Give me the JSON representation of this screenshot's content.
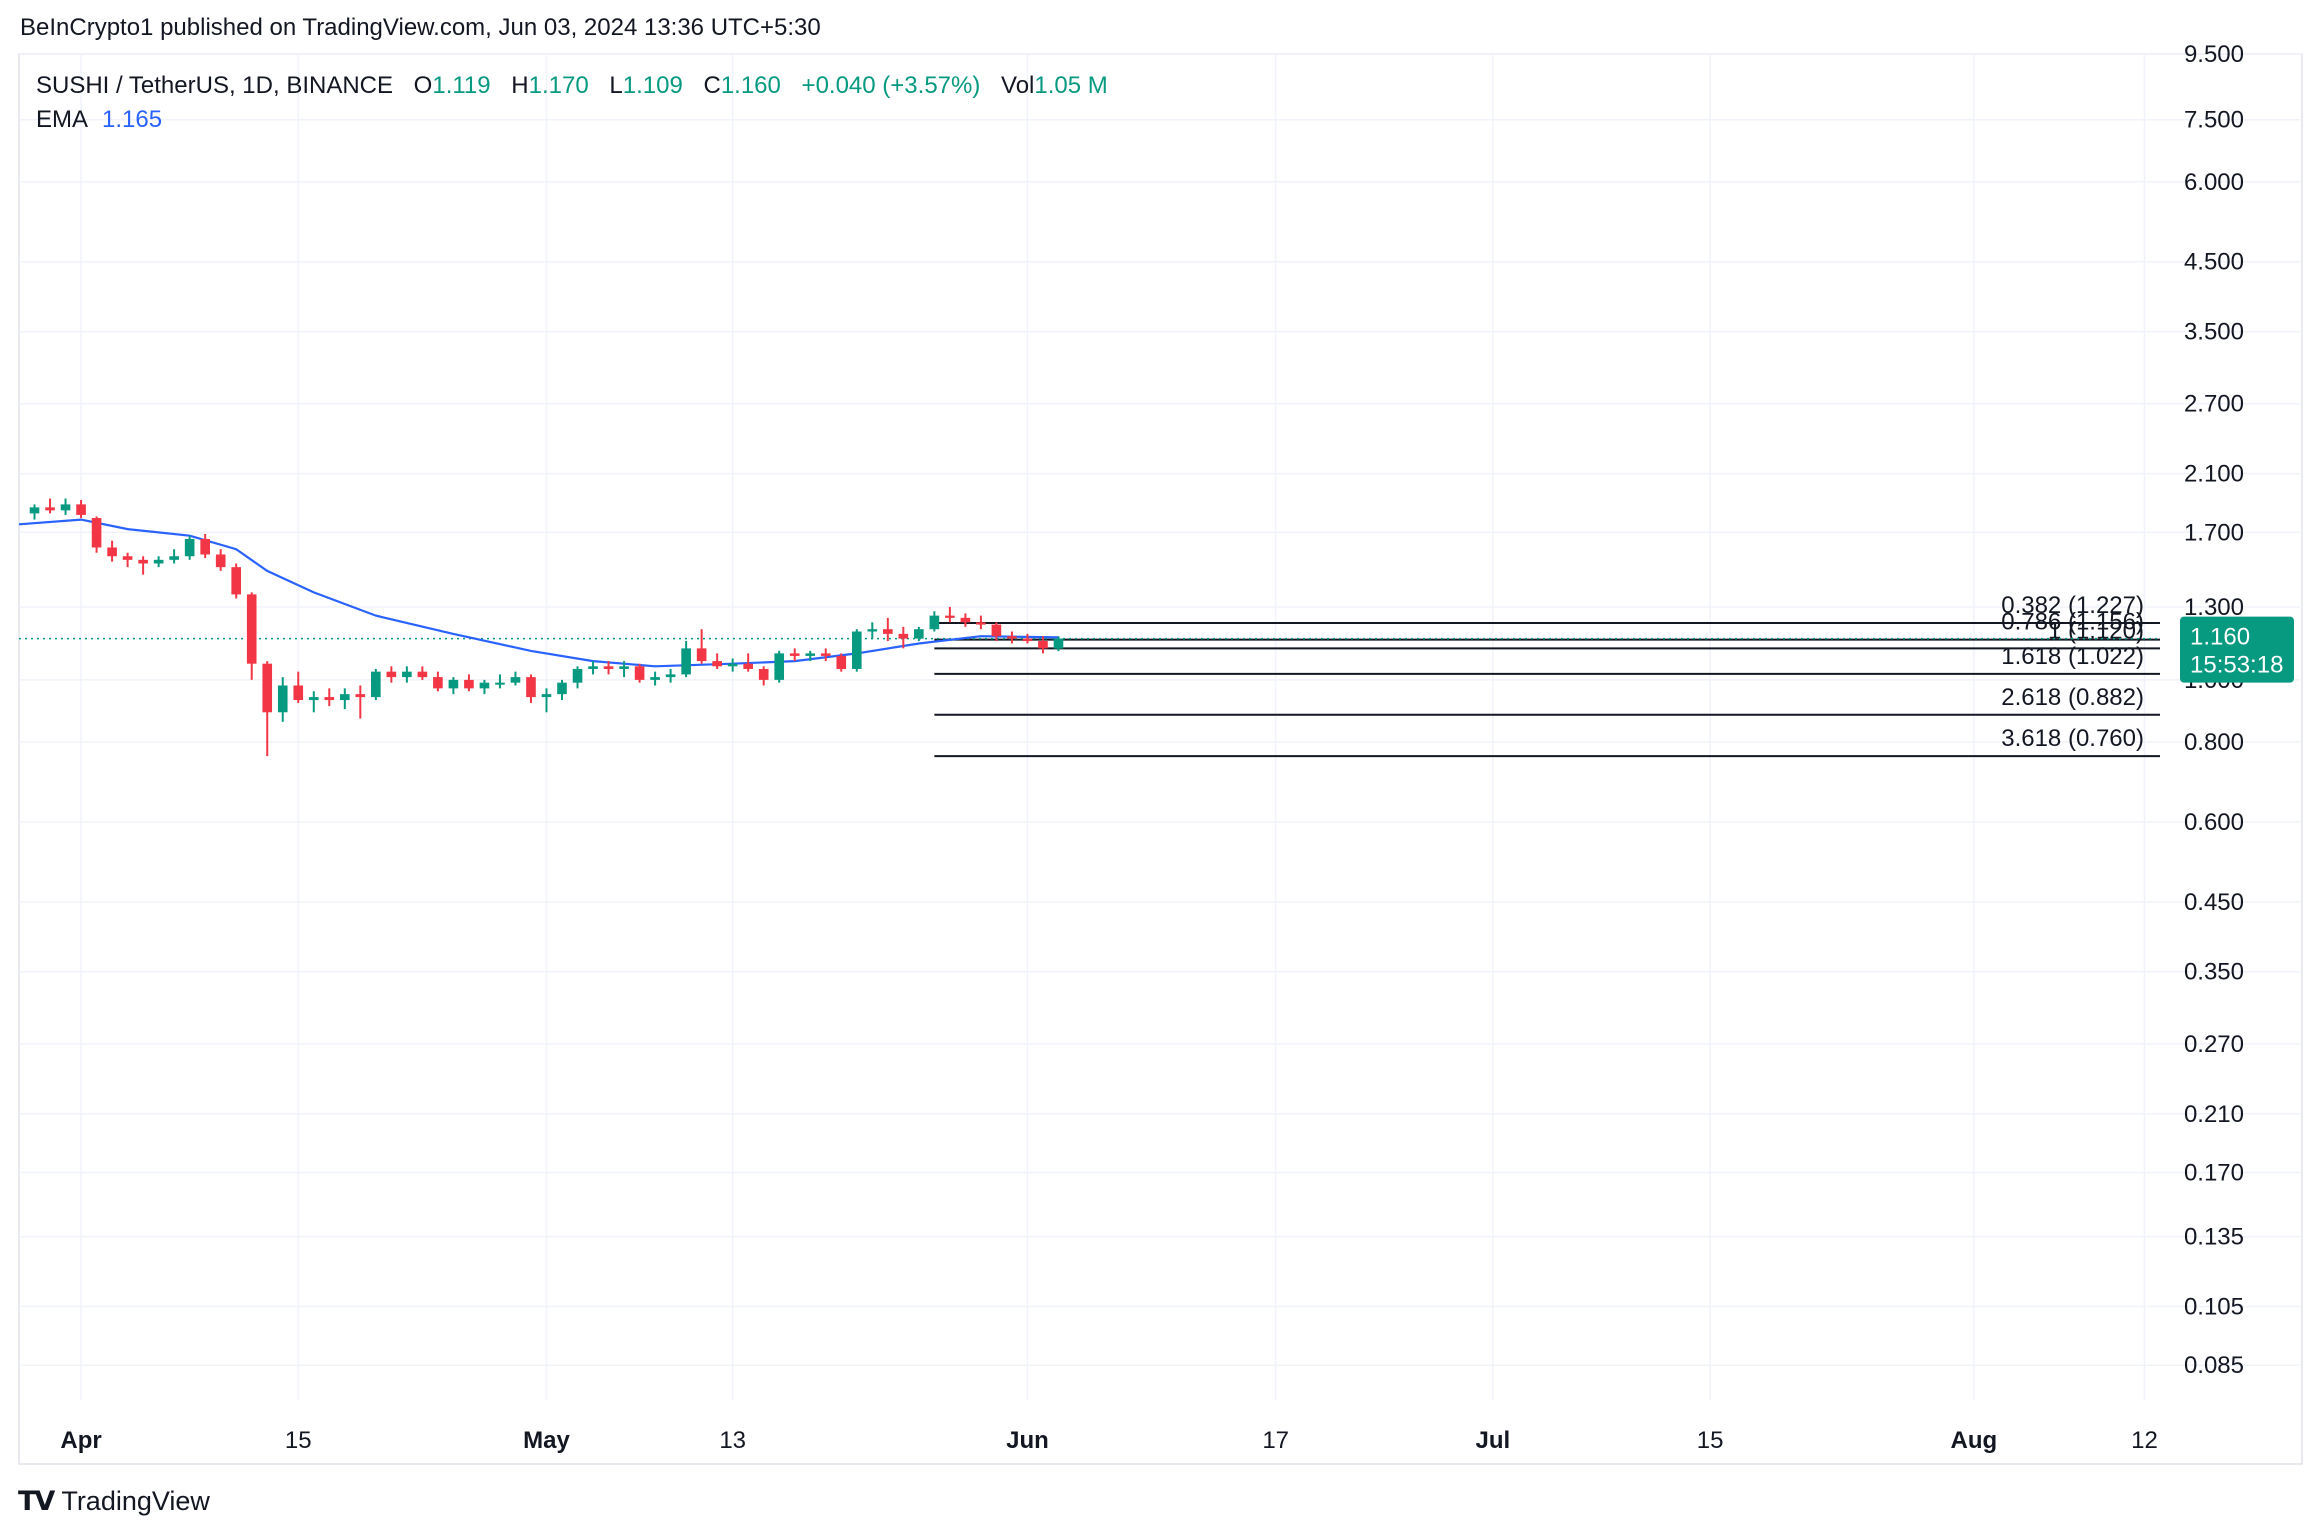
{
  "header": {
    "published_text": "BeInCrypto1 published on TradingView.com, Jun 03, 2024 13:36 UTC+5:30"
  },
  "legend": {
    "symbol": "SUSHI / TetherUS, 1D, BINANCE",
    "o_label": "O",
    "o_value": "1.119",
    "h_label": "H",
    "h_value": "1.170",
    "l_label": "L",
    "l_value": "1.109",
    "c_label": "C",
    "c_value": "1.160",
    "change": "+0.040 (+3.57%)",
    "vol_label": "Vol",
    "vol_value": "1.05 M",
    "ema_label": "EMA",
    "ema_value": "1.165"
  },
  "price_badge": {
    "price": "1.160",
    "countdown": "15:53:18",
    "color": "#089981"
  },
  "brand": {
    "name": "TradingView",
    "logo_icon": "tradingview-logo-icon"
  },
  "colors": {
    "up": "#089981",
    "down": "#f23645",
    "ema": "#2962ff",
    "grid": "#f0f3fa"
  },
  "chart_data": {
    "type": "candlestick",
    "scale": "log",
    "grid": true,
    "y_ticks": [
      "9.500",
      "7.500",
      "6.000",
      "4.500",
      "3.500",
      "2.700",
      "2.100",
      "1.700",
      "1.300",
      "1.000",
      "0.800",
      "0.600",
      "0.450",
      "0.350",
      "0.270",
      "0.210",
      "0.170",
      "0.135",
      "0.105",
      "0.085"
    ],
    "y_tick_values": [
      9.5,
      7.5,
      6.0,
      4.5,
      3.5,
      2.7,
      2.1,
      1.7,
      1.3,
      1.0,
      0.8,
      0.6,
      0.45,
      0.35,
      0.27,
      0.21,
      0.17,
      0.135,
      0.105,
      0.085
    ],
    "ylim": [
      0.075,
      9.5
    ],
    "x_ticks": [
      {
        "label": "Apr",
        "date": "2024-04-01",
        "bold": true
      },
      {
        "label": "15",
        "date": "2024-04-15",
        "bold": false
      },
      {
        "label": "May",
        "date": "2024-05-01",
        "bold": true
      },
      {
        "label": "13",
        "date": "2024-05-13",
        "bold": false
      },
      {
        "label": "Jun",
        "date": "2024-06-01",
        "bold": true
      },
      {
        "label": "17",
        "date": "2024-06-17",
        "bold": false
      },
      {
        "label": "Jul",
        "date": "2024-07-01",
        "bold": true
      },
      {
        "label": "15",
        "date": "2024-07-15",
        "bold": false
      },
      {
        "label": "Aug",
        "date": "2024-08-01",
        "bold": true
      },
      {
        "label": "12",
        "date": "2024-08-12",
        "bold": false
      }
    ],
    "xlim": [
      "2024-03-28",
      "2024-08-13"
    ],
    "candles": [
      {
        "date": "2024-03-29",
        "o": 1.82,
        "h": 1.88,
        "l": 1.78,
        "c": 1.86
      },
      {
        "date": "2024-03-30",
        "o": 1.86,
        "h": 1.92,
        "l": 1.82,
        "c": 1.84
      },
      {
        "date": "2024-03-31",
        "o": 1.84,
        "h": 1.92,
        "l": 1.81,
        "c": 1.88
      },
      {
        "date": "2024-04-01",
        "o": 1.88,
        "h": 1.91,
        "l": 1.79,
        "c": 1.81
      },
      {
        "date": "2024-04-02",
        "o": 1.79,
        "h": 1.8,
        "l": 1.58,
        "c": 1.61
      },
      {
        "date": "2024-04-03",
        "o": 1.61,
        "h": 1.65,
        "l": 1.53,
        "c": 1.56
      },
      {
        "date": "2024-04-04",
        "o": 1.56,
        "h": 1.58,
        "l": 1.5,
        "c": 1.54
      },
      {
        "date": "2024-04-05",
        "o": 1.54,
        "h": 1.56,
        "l": 1.46,
        "c": 1.52
      },
      {
        "date": "2024-04-06",
        "o": 1.52,
        "h": 1.56,
        "l": 1.5,
        "c": 1.54
      },
      {
        "date": "2024-04-07",
        "o": 1.54,
        "h": 1.6,
        "l": 1.52,
        "c": 1.56
      },
      {
        "date": "2024-04-08",
        "o": 1.56,
        "h": 1.68,
        "l": 1.54,
        "c": 1.66
      },
      {
        "date": "2024-04-09",
        "o": 1.66,
        "h": 1.69,
        "l": 1.55,
        "c": 1.57
      },
      {
        "date": "2024-04-10",
        "o": 1.57,
        "h": 1.6,
        "l": 1.48,
        "c": 1.5
      },
      {
        "date": "2024-04-11",
        "o": 1.5,
        "h": 1.52,
        "l": 1.34,
        "c": 1.36
      },
      {
        "date": "2024-04-12",
        "o": 1.36,
        "h": 1.37,
        "l": 1.0,
        "c": 1.06
      },
      {
        "date": "2024-04-13",
        "o": 1.06,
        "h": 1.07,
        "l": 0.76,
        "c": 0.89
      },
      {
        "date": "2024-04-14",
        "o": 0.89,
        "h": 1.01,
        "l": 0.86,
        "c": 0.98
      },
      {
        "date": "2024-04-15",
        "o": 0.98,
        "h": 1.03,
        "l": 0.92,
        "c": 0.93
      },
      {
        "date": "2024-04-16",
        "o": 0.93,
        "h": 0.96,
        "l": 0.89,
        "c": 0.94
      },
      {
        "date": "2024-04-17",
        "o": 0.94,
        "h": 0.97,
        "l": 0.91,
        "c": 0.93
      },
      {
        "date": "2024-04-18",
        "o": 0.93,
        "h": 0.97,
        "l": 0.9,
        "c": 0.95
      },
      {
        "date": "2024-04-19",
        "o": 0.95,
        "h": 0.98,
        "l": 0.87,
        "c": 0.94
      },
      {
        "date": "2024-04-20",
        "o": 0.94,
        "h": 1.04,
        "l": 0.93,
        "c": 1.03
      },
      {
        "date": "2024-04-21",
        "o": 1.03,
        "h": 1.05,
        "l": 0.99,
        "c": 1.01
      },
      {
        "date": "2024-04-22",
        "o": 1.01,
        "h": 1.05,
        "l": 0.99,
        "c": 1.03
      },
      {
        "date": "2024-04-23",
        "o": 1.03,
        "h": 1.05,
        "l": 1.0,
        "c": 1.01
      },
      {
        "date": "2024-04-24",
        "o": 1.01,
        "h": 1.03,
        "l": 0.96,
        "c": 0.97
      },
      {
        "date": "2024-04-25",
        "o": 0.97,
        "h": 1.01,
        "l": 0.95,
        "c": 1.0
      },
      {
        "date": "2024-04-26",
        "o": 1.0,
        "h": 1.02,
        "l": 0.96,
        "c": 0.97
      },
      {
        "date": "2024-04-27",
        "o": 0.97,
        "h": 1.0,
        "l": 0.95,
        "c": 0.99
      },
      {
        "date": "2024-04-28",
        "o": 0.99,
        "h": 1.02,
        "l": 0.97,
        "c": 0.99
      },
      {
        "date": "2024-04-29",
        "o": 0.99,
        "h": 1.03,
        "l": 0.98,
        "c": 1.01
      },
      {
        "date": "2024-04-30",
        "o": 1.01,
        "h": 1.02,
        "l": 0.92,
        "c": 0.94
      },
      {
        "date": "2024-05-01",
        "o": 0.94,
        "h": 0.97,
        "l": 0.89,
        "c": 0.95
      },
      {
        "date": "2024-05-02",
        "o": 0.95,
        "h": 1.0,
        "l": 0.93,
        "c": 0.99
      },
      {
        "date": "2024-05-03",
        "o": 0.99,
        "h": 1.05,
        "l": 0.97,
        "c": 1.04
      },
      {
        "date": "2024-05-04",
        "o": 1.04,
        "h": 1.07,
        "l": 1.02,
        "c": 1.05
      },
      {
        "date": "2024-05-05",
        "o": 1.05,
        "h": 1.07,
        "l": 1.02,
        "c": 1.04
      },
      {
        "date": "2024-05-06",
        "o": 1.04,
        "h": 1.07,
        "l": 1.01,
        "c": 1.05
      },
      {
        "date": "2024-05-07",
        "o": 1.05,
        "h": 1.06,
        "l": 0.99,
        "c": 1.0
      },
      {
        "date": "2024-05-08",
        "o": 1.0,
        "h": 1.03,
        "l": 0.98,
        "c": 1.01
      },
      {
        "date": "2024-05-09",
        "o": 1.01,
        "h": 1.04,
        "l": 0.99,
        "c": 1.02
      },
      {
        "date": "2024-05-10",
        "o": 1.02,
        "h": 1.15,
        "l": 1.01,
        "c": 1.12
      },
      {
        "date": "2024-05-11",
        "o": 1.12,
        "h": 1.2,
        "l": 1.06,
        "c": 1.07
      },
      {
        "date": "2024-05-12",
        "o": 1.07,
        "h": 1.1,
        "l": 1.04,
        "c": 1.05
      },
      {
        "date": "2024-05-13",
        "o": 1.05,
        "h": 1.08,
        "l": 1.03,
        "c": 1.06
      },
      {
        "date": "2024-05-14",
        "o": 1.06,
        "h": 1.1,
        "l": 1.03,
        "c": 1.04
      },
      {
        "date": "2024-05-15",
        "o": 1.04,
        "h": 1.05,
        "l": 0.98,
        "c": 1.0
      },
      {
        "date": "2024-05-16",
        "o": 1.0,
        "h": 1.11,
        "l": 0.99,
        "c": 1.1
      },
      {
        "date": "2024-05-17",
        "o": 1.1,
        "h": 1.12,
        "l": 1.07,
        "c": 1.09
      },
      {
        "date": "2024-05-18",
        "o": 1.09,
        "h": 1.11,
        "l": 1.07,
        "c": 1.1
      },
      {
        "date": "2024-05-19",
        "o": 1.1,
        "h": 1.12,
        "l": 1.07,
        "c": 1.09
      },
      {
        "date": "2024-05-20",
        "o": 1.09,
        "h": 1.1,
        "l": 1.03,
        "c": 1.04
      },
      {
        "date": "2024-05-21",
        "o": 1.04,
        "h": 1.2,
        "l": 1.03,
        "c": 1.19
      },
      {
        "date": "2024-05-22",
        "o": 1.19,
        "h": 1.23,
        "l": 1.16,
        "c": 1.2
      },
      {
        "date": "2024-05-23",
        "o": 1.2,
        "h": 1.25,
        "l": 1.15,
        "c": 1.18
      },
      {
        "date": "2024-05-24",
        "o": 1.18,
        "h": 1.21,
        "l": 1.12,
        "c": 1.16
      },
      {
        "date": "2024-05-25",
        "o": 1.16,
        "h": 1.21,
        "l": 1.15,
        "c": 1.2
      },
      {
        "date": "2024-05-26",
        "o": 1.2,
        "h": 1.28,
        "l": 1.19,
        "c": 1.26
      },
      {
        "date": "2024-05-27",
        "o": 1.26,
        "h": 1.3,
        "l": 1.23,
        "c": 1.25
      },
      {
        "date": "2024-05-28",
        "o": 1.25,
        "h": 1.27,
        "l": 1.21,
        "c": 1.23
      },
      {
        "date": "2024-05-29",
        "o": 1.23,
        "h": 1.26,
        "l": 1.2,
        "c": 1.22
      },
      {
        "date": "2024-05-30",
        "o": 1.22,
        "h": 1.23,
        "l": 1.15,
        "c": 1.17
      },
      {
        "date": "2024-05-31",
        "o": 1.17,
        "h": 1.19,
        "l": 1.14,
        "c": 1.16
      },
      {
        "date": "2024-06-01",
        "o": 1.16,
        "h": 1.18,
        "l": 1.14,
        "c": 1.15
      },
      {
        "date": "2024-06-02",
        "o": 1.15,
        "h": 1.17,
        "l": 1.1,
        "c": 1.12
      },
      {
        "date": "2024-06-03",
        "o": 1.119,
        "h": 1.17,
        "l": 1.109,
        "c": 1.16
      }
    ],
    "ema": {
      "name": "EMA",
      "points": [
        {
          "date": "2024-03-28",
          "value": 1.75
        },
        {
          "date": "2024-04-01",
          "value": 1.78
        },
        {
          "date": "2024-04-04",
          "value": 1.72
        },
        {
          "date": "2024-04-08",
          "value": 1.68
        },
        {
          "date": "2024-04-11",
          "value": 1.6
        },
        {
          "date": "2024-04-13",
          "value": 1.48
        },
        {
          "date": "2024-04-16",
          "value": 1.37
        },
        {
          "date": "2024-04-20",
          "value": 1.26
        },
        {
          "date": "2024-04-25",
          "value": 1.18
        },
        {
          "date": "2024-04-30",
          "value": 1.11
        },
        {
          "date": "2024-05-04",
          "value": 1.07
        },
        {
          "date": "2024-05-08",
          "value": 1.05
        },
        {
          "date": "2024-05-13",
          "value": 1.06
        },
        {
          "date": "2024-05-17",
          "value": 1.07
        },
        {
          "date": "2024-05-21",
          "value": 1.1
        },
        {
          "date": "2024-05-25",
          "value": 1.14
        },
        {
          "date": "2024-05-29",
          "value": 1.17
        },
        {
          "date": "2024-06-03",
          "value": 1.165
        }
      ]
    },
    "current_price_line": 1.16,
    "fib_start_date": "2024-05-26",
    "fib_end_date": "2024-08-13",
    "fib_levels": [
      {
        "label": "0.382 (1.227)",
        "value": 1.227
      },
      {
        "label": "0.786 (1.156)",
        "value": 1.156
      },
      {
        "label": "1 (1.120)",
        "value": 1.12
      },
      {
        "label": "1.618 (1.022)",
        "value": 1.022
      },
      {
        "label": "2.618 (0.882)",
        "value": 0.882
      },
      {
        "label": "3.618 (0.760)",
        "value": 0.76
      }
    ]
  }
}
